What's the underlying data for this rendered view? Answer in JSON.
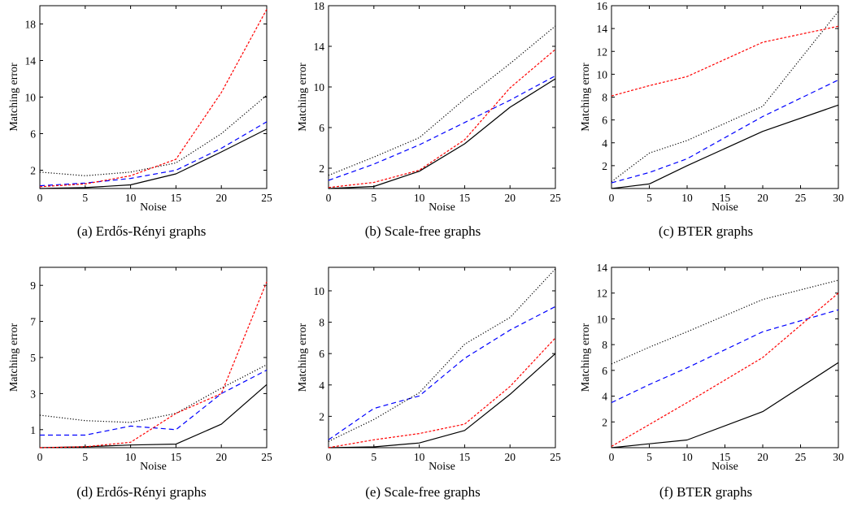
{
  "series_styles": [
    {
      "key": "solid",
      "color": "#000000",
      "dash": ""
    },
    {
      "key": "dashed",
      "color": "#0000ff",
      "dash": "6,4"
    },
    {
      "key": "dotted",
      "color": "#000000",
      "dash": "1.2,2.2"
    },
    {
      "key": "redshort",
      "color": "#ff0000",
      "dash": "3,2"
    }
  ],
  "chart_data": [
    {
      "type": "line",
      "caption": "(a)  Erdős-Rényi graphs",
      "xlabel": "Noise",
      "ylabel": "Matching error",
      "xlim": [
        0,
        25
      ],
      "ylim": [
        0,
        20
      ],
      "xticks": [
        0,
        5,
        10,
        15,
        20,
        25
      ],
      "yticks": [
        2,
        6,
        10,
        14,
        18
      ],
      "x": [
        0,
        5,
        10,
        15,
        20,
        25
      ],
      "series": [
        {
          "style": "solid",
          "values": [
            0.0,
            0.1,
            0.4,
            1.6,
            4.0,
            6.5
          ]
        },
        {
          "style": "dashed",
          "values": [
            0.3,
            0.6,
            1.1,
            2.0,
            4.4,
            7.3
          ]
        },
        {
          "style": "dotted",
          "values": [
            1.8,
            1.4,
            1.8,
            2.8,
            6.0,
            10.2
          ]
        },
        {
          "style": "redshort",
          "values": [
            0.2,
            0.5,
            1.4,
            3.2,
            10.5,
            19.6
          ]
        }
      ]
    },
    {
      "type": "line",
      "caption": "(b)  Scale-free graphs",
      "xlabel": "Noise",
      "ylabel": "Matching error",
      "xlim": [
        0,
        25
      ],
      "ylim": [
        0,
        18
      ],
      "xticks": [
        0,
        5,
        10,
        15,
        20,
        25
      ],
      "yticks": [
        2,
        6,
        10,
        14,
        18
      ],
      "x": [
        0,
        5,
        10,
        15,
        20,
        25
      ],
      "series": [
        {
          "style": "solid",
          "values": [
            0.0,
            0.2,
            1.7,
            4.4,
            8.0,
            10.8
          ]
        },
        {
          "style": "dashed",
          "values": [
            0.8,
            2.4,
            4.3,
            6.5,
            8.7,
            11.1
          ]
        },
        {
          "style": "dotted",
          "values": [
            1.3,
            3.1,
            5.0,
            8.8,
            12.3,
            16.0
          ]
        },
        {
          "style": "redshort",
          "values": [
            0.1,
            0.6,
            1.8,
            4.8,
            9.9,
            13.7
          ]
        }
      ]
    },
    {
      "type": "line",
      "caption": "(c)  BTER graphs",
      "xlabel": "Noise",
      "ylabel": "Matching error",
      "xlim": [
        0,
        30
      ],
      "ylim": [
        0,
        16
      ],
      "xticks": [
        0,
        5,
        10,
        15,
        20,
        25,
        30
      ],
      "yticks": [
        2,
        4,
        6,
        8,
        10,
        12,
        14,
        16
      ],
      "x": [
        0,
        5,
        10,
        20,
        30
      ],
      "series": [
        {
          "style": "solid",
          "values": [
            0.0,
            0.4,
            2.0,
            5.0,
            7.3
          ]
        },
        {
          "style": "dashed",
          "values": [
            0.5,
            1.4,
            2.6,
            6.3,
            9.5
          ]
        },
        {
          "style": "dotted",
          "values": [
            0.6,
            3.1,
            4.2,
            7.2,
            15.5
          ]
        },
        {
          "style": "redshort",
          "values": [
            8.1,
            9.0,
            9.8,
            12.8,
            14.2
          ]
        }
      ]
    },
    {
      "type": "line",
      "caption": "(d)  Erdős-Rényi graphs",
      "xlabel": "Noise",
      "ylabel": "Matching error",
      "xlim": [
        0,
        25
      ],
      "ylim": [
        0,
        10
      ],
      "xticks": [
        0,
        5,
        10,
        15,
        20,
        25
      ],
      "yticks": [
        1,
        3,
        5,
        7,
        9
      ],
      "x": [
        0,
        5,
        10,
        15,
        20,
        25
      ],
      "series": [
        {
          "style": "solid",
          "values": [
            0.0,
            0.05,
            0.15,
            0.2,
            1.3,
            3.5
          ]
        },
        {
          "style": "dashed",
          "values": [
            0.7,
            0.7,
            1.2,
            1.0,
            3.0,
            4.3
          ]
        },
        {
          "style": "dotted",
          "values": [
            1.8,
            1.5,
            1.4,
            1.9,
            3.3,
            4.6
          ]
        },
        {
          "style": "redshort",
          "values": [
            0.0,
            0.05,
            0.3,
            1.9,
            3.0,
            9.2
          ]
        }
      ]
    },
    {
      "type": "line",
      "caption": "(e)  Scale-free graphs",
      "xlabel": "Noise",
      "ylabel": "Matching error",
      "xlim": [
        0,
        25
      ],
      "ylim": [
        0,
        11.5
      ],
      "xticks": [
        0,
        5,
        10,
        15,
        20,
        25
      ],
      "yticks": [
        2,
        4,
        6,
        8,
        10
      ],
      "x": [
        0,
        5,
        10,
        15,
        20,
        25
      ],
      "series": [
        {
          "style": "solid",
          "values": [
            0.0,
            0.05,
            0.3,
            1.1,
            3.4,
            6.0
          ]
        },
        {
          "style": "dashed",
          "values": [
            0.5,
            2.5,
            3.3,
            5.7,
            7.5,
            9.0
          ]
        },
        {
          "style": "dotted",
          "values": [
            0.4,
            1.8,
            3.5,
            6.6,
            8.3,
            11.4
          ]
        },
        {
          "style": "redshort",
          "values": [
            0.0,
            0.5,
            0.9,
            1.5,
            3.9,
            7.0
          ]
        }
      ]
    },
    {
      "type": "line",
      "caption": "(f)  BTER graphs",
      "xlabel": "Noise",
      "ylabel": "Matching error",
      "xlim": [
        0,
        30
      ],
      "ylim": [
        0,
        14
      ],
      "xticks": [
        0,
        5,
        10,
        15,
        20,
        25,
        30
      ],
      "yticks": [
        2,
        4,
        6,
        8,
        10,
        12,
        14
      ],
      "x": [
        0,
        5,
        10,
        20,
        30
      ],
      "series": [
        {
          "style": "solid",
          "values": [
            0.0,
            0.3,
            0.6,
            2.8,
            6.6
          ]
        },
        {
          "style": "dashed",
          "values": [
            3.5,
            4.9,
            6.2,
            9.0,
            10.7
          ]
        },
        {
          "style": "dotted",
          "values": [
            6.5,
            7.8,
            9.0,
            11.5,
            13.0
          ]
        },
        {
          "style": "redshort",
          "values": [
            0.1,
            1.8,
            3.5,
            7.0,
            12.0
          ]
        }
      ]
    }
  ]
}
